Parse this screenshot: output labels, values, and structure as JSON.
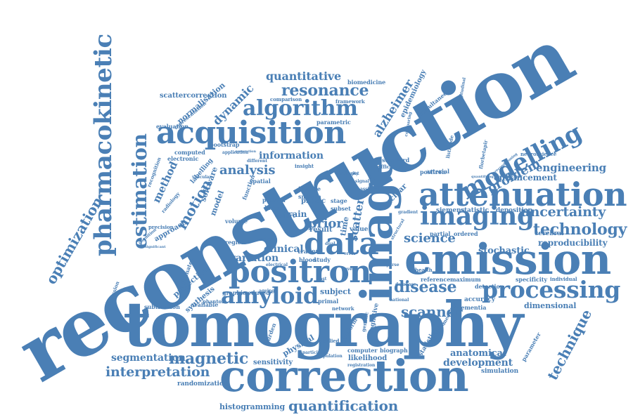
{
  "cloud": {
    "color": "#4a7fb5",
    "words": [
      "reconstruction",
      "tomography",
      "correction",
      "emission",
      "image",
      "attenuation",
      "acquisition",
      "positron",
      "data",
      "processing",
      "modelling",
      "imaging",
      "pharmacokinetic",
      "amyloid",
      "algorithm",
      "resonance",
      "technology",
      "estimation",
      "disease",
      "magnetic",
      "quantification",
      "interpretation",
      "optimization",
      "scanner",
      "uncertainty",
      "motion",
      "problem",
      "technique",
      "science",
      "analysis",
      "prior",
      "alzheimer",
      "quantitative",
      "engineering",
      "segmentation",
      "dynamic",
      "method",
      "enhancement",
      "scatter",
      "information",
      "development",
      "anatomical",
      "stochastic",
      "reproducibility",
      "clinical",
      "variation",
      "histogramming",
      "scattercorrection",
      "normalisation",
      "approach",
      "epidemiology",
      "physical",
      "likelihood",
      "subject",
      "dimensional",
      "sensitivity",
      "randomization",
      "simulation",
      "computed",
      "projection",
      "synthesis",
      "software",
      "model",
      "brain",
      "result",
      "physic",
      "volume",
      "nuclear",
      "siemens",
      "statistic",
      "deposition",
      "cerebral",
      "biomedicine",
      "framework",
      "comparison",
      "parametric",
      "evaluation",
      "bootstrap",
      "electronic",
      "labelling",
      "standard",
      "efficient",
      "arterial",
      "positron",
      "neuroscience",
      "simultaneous",
      "florbetapir",
      "listmode",
      "accuracy",
      "dementia",
      "detection",
      "specificity",
      "individual",
      "reference",
      "maximum",
      "partial",
      "ordered",
      "automated",
      "graphic",
      "reduced",
      "available",
      "subtraction",
      "regression",
      "recognition",
      "radiology",
      "precision",
      "representation",
      "application",
      "different",
      "insight",
      "function",
      "inverse",
      "smooth",
      "pattern",
      "kinetic",
      "cohort",
      "tracer",
      "blood",
      "study",
      "stage",
      "subset",
      "value",
      "time",
      "region",
      "faster",
      "primal",
      "network",
      "cognitive",
      "genetic",
      "computer",
      "biograph",
      "registration",
      "statistical",
      "estimate",
      "parameter",
      "platform",
      "applied",
      "population",
      "participant",
      "medicine",
      "health",
      "database",
      "phantom",
      "ageing",
      "national",
      "dual",
      "event",
      "fast",
      "error",
      "level",
      "imag",
      "sparse",
      "gradient",
      "signal",
      "spatial",
      "burden",
      "cognition",
      "generation",
      "longitudinal",
      "preconditioning",
      "quantifying",
      "significant",
      "comparing",
      "structural",
      "vascular",
      "electrical",
      "assisted",
      "similarity",
      "pet",
      "mri"
    ]
  }
}
